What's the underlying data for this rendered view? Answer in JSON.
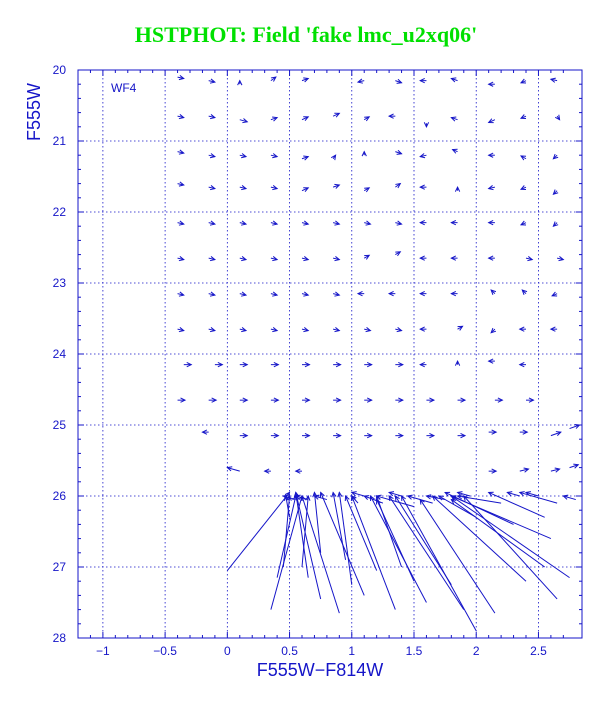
{
  "title": "HSTPHOT: Field 'fake lmc_u2xq06'",
  "chart_data": {
    "type": "vector_field",
    "panel_label": "WF4",
    "xlabel": "F555W−F814W",
    "ylabel": "F555W",
    "xlim": [
      -1.2,
      2.85
    ],
    "ylim": [
      28,
      20
    ],
    "y_inverted": true,
    "grid": true,
    "x_ticks": [
      -1,
      -0.5,
      0,
      0.5,
      1,
      1.5,
      2,
      2.5
    ],
    "x_tick_labels": [
      "−1",
      "−0.5",
      "0",
      "0.5",
      "1",
      "1.5",
      "2",
      "2.5"
    ],
    "y_ticks": [
      20,
      21,
      22,
      23,
      24,
      25,
      26,
      27,
      28
    ],
    "y_tick_labels": [
      "20",
      "21",
      "22",
      "23",
      "24",
      "25",
      "26",
      "27",
      "28"
    ],
    "vectors": [
      {
        "x": -0.4,
        "y": 20.1,
        "dx": 0.05,
        "dy": 0.02
      },
      {
        "x": -0.15,
        "y": 20.15,
        "dx": 0.05,
        "dy": 0.02
      },
      {
        "x": 0.1,
        "y": 20.2,
        "dx": 0.0,
        "dy": -0.05
      },
      {
        "x": 0.35,
        "y": 20.15,
        "dx": 0.04,
        "dy": -0.05
      },
      {
        "x": 0.6,
        "y": 20.15,
        "dx": 0.05,
        "dy": -0.03
      },
      {
        "x": 1.1,
        "y": 20.15,
        "dx": -0.05,
        "dy": 0.02
      },
      {
        "x": 1.35,
        "y": 20.15,
        "dx": 0.05,
        "dy": 0.03
      },
      {
        "x": 1.6,
        "y": 20.15,
        "dx": -0.05,
        "dy": 0.0
      },
      {
        "x": 1.85,
        "y": 20.15,
        "dx": -0.05,
        "dy": -0.03
      },
      {
        "x": 2.15,
        "y": 20.2,
        "dx": -0.05,
        "dy": 0.0
      },
      {
        "x": 2.4,
        "y": 20.15,
        "dx": -0.04,
        "dy": 0.03
      },
      {
        "x": 2.65,
        "y": 20.15,
        "dx": -0.05,
        "dy": -0.02
      },
      {
        "x": -0.4,
        "y": 20.65,
        "dx": 0.05,
        "dy": 0.02
      },
      {
        "x": -0.15,
        "y": 20.65,
        "dx": 0.05,
        "dy": 0.02
      },
      {
        "x": 0.1,
        "y": 20.7,
        "dx": 0.06,
        "dy": 0.03
      },
      {
        "x": 0.35,
        "y": 20.7,
        "dx": 0.05,
        "dy": -0.03
      },
      {
        "x": 0.6,
        "y": 20.7,
        "dx": 0.05,
        "dy": -0.04
      },
      {
        "x": 0.85,
        "y": 20.65,
        "dx": 0.05,
        "dy": -0.04
      },
      {
        "x": 1.1,
        "y": 20.7,
        "dx": 0.04,
        "dy": -0.04
      },
      {
        "x": 1.35,
        "y": 20.65,
        "dx": -0.05,
        "dy": 0.0
      },
      {
        "x": 1.6,
        "y": 20.75,
        "dx": 0.0,
        "dy": 0.05
      },
      {
        "x": 1.85,
        "y": 20.7,
        "dx": -0.05,
        "dy": -0.03
      },
      {
        "x": 2.15,
        "y": 20.7,
        "dx": -0.05,
        "dy": 0.04
      },
      {
        "x": 2.4,
        "y": 20.65,
        "dx": -0.04,
        "dy": 0.03
      },
      {
        "x": 2.65,
        "y": 20.65,
        "dx": 0.02,
        "dy": 0.05
      },
      {
        "x": -0.4,
        "y": 21.15,
        "dx": 0.05,
        "dy": 0.02
      },
      {
        "x": -0.15,
        "y": 21.2,
        "dx": 0.05,
        "dy": 0.02
      },
      {
        "x": 0.1,
        "y": 21.2,
        "dx": 0.05,
        "dy": 0.02
      },
      {
        "x": 0.35,
        "y": 21.2,
        "dx": 0.05,
        "dy": 0.02
      },
      {
        "x": 0.6,
        "y": 21.25,
        "dx": 0.05,
        "dy": -0.03
      },
      {
        "x": 0.85,
        "y": 21.25,
        "dx": 0.02,
        "dy": -0.05
      },
      {
        "x": 1.1,
        "y": 21.2,
        "dx": 0.0,
        "dy": -0.05
      },
      {
        "x": 1.35,
        "y": 21.15,
        "dx": 0.05,
        "dy": 0.03
      },
      {
        "x": 1.6,
        "y": 21.2,
        "dx": -0.05,
        "dy": 0.02
      },
      {
        "x": 1.85,
        "y": 21.15,
        "dx": -0.04,
        "dy": -0.03
      },
      {
        "x": 2.15,
        "y": 21.2,
        "dx": -0.05,
        "dy": 0.0
      },
      {
        "x": 2.4,
        "y": 21.25,
        "dx": -0.04,
        "dy": -0.04
      },
      {
        "x": 2.65,
        "y": 21.2,
        "dx": -0.03,
        "dy": 0.05
      },
      {
        "x": -0.4,
        "y": 21.6,
        "dx": 0.05,
        "dy": 0.02
      },
      {
        "x": -0.15,
        "y": 21.65,
        "dx": 0.05,
        "dy": 0.02
      },
      {
        "x": 0.1,
        "y": 21.65,
        "dx": 0.05,
        "dy": 0.02
      },
      {
        "x": 0.35,
        "y": 21.65,
        "dx": 0.05,
        "dy": 0.02
      },
      {
        "x": 0.6,
        "y": 21.7,
        "dx": 0.05,
        "dy": -0.04
      },
      {
        "x": 0.85,
        "y": 21.65,
        "dx": 0.05,
        "dy": -0.03
      },
      {
        "x": 1.1,
        "y": 21.7,
        "dx": 0.04,
        "dy": -0.04
      },
      {
        "x": 1.35,
        "y": 21.65,
        "dx": 0.04,
        "dy": -0.05
      },
      {
        "x": 1.6,
        "y": 21.65,
        "dx": -0.05,
        "dy": 0.0
      },
      {
        "x": 1.85,
        "y": 21.7,
        "dx": 0.0,
        "dy": -0.05
      },
      {
        "x": 2.15,
        "y": 21.65,
        "dx": -0.05,
        "dy": 0.02
      },
      {
        "x": 2.4,
        "y": 21.65,
        "dx": -0.04,
        "dy": 0.03
      },
      {
        "x": 2.65,
        "y": 21.7,
        "dx": -0.03,
        "dy": 0.05
      },
      {
        "x": -0.4,
        "y": 22.15,
        "dx": 0.05,
        "dy": 0.02
      },
      {
        "x": -0.15,
        "y": 22.15,
        "dx": 0.05,
        "dy": 0.02
      },
      {
        "x": 0.1,
        "y": 22.15,
        "dx": 0.05,
        "dy": 0.02
      },
      {
        "x": 0.35,
        "y": 22.15,
        "dx": 0.05,
        "dy": 0.02
      },
      {
        "x": 0.6,
        "y": 22.15,
        "dx": 0.05,
        "dy": 0.02
      },
      {
        "x": 0.85,
        "y": 22.15,
        "dx": 0.05,
        "dy": 0.02
      },
      {
        "x": 1.1,
        "y": 22.15,
        "dx": 0.05,
        "dy": 0.02
      },
      {
        "x": 1.35,
        "y": 22.15,
        "dx": 0.05,
        "dy": 0.02
      },
      {
        "x": 1.6,
        "y": 22.15,
        "dx": -0.05,
        "dy": 0.0
      },
      {
        "x": 1.85,
        "y": 22.15,
        "dx": -0.05,
        "dy": 0.0
      },
      {
        "x": 2.15,
        "y": 22.15,
        "dx": -0.05,
        "dy": 0.0
      },
      {
        "x": 2.4,
        "y": 22.15,
        "dx": -0.04,
        "dy": 0.03
      },
      {
        "x": 2.65,
        "y": 22.15,
        "dx": -0.03,
        "dy": 0.05
      },
      {
        "x": -0.4,
        "y": 22.65,
        "dx": 0.05,
        "dy": 0.02
      },
      {
        "x": -0.15,
        "y": 22.65,
        "dx": 0.05,
        "dy": 0.02
      },
      {
        "x": 0.1,
        "y": 22.65,
        "dx": 0.05,
        "dy": 0.02
      },
      {
        "x": 0.35,
        "y": 22.65,
        "dx": 0.05,
        "dy": 0.02
      },
      {
        "x": 0.6,
        "y": 22.65,
        "dx": 0.05,
        "dy": 0.02
      },
      {
        "x": 0.85,
        "y": 22.65,
        "dx": 0.05,
        "dy": 0.02
      },
      {
        "x": 1.1,
        "y": 22.65,
        "dx": 0.04,
        "dy": -0.04
      },
      {
        "x": 1.35,
        "y": 22.6,
        "dx": 0.04,
        "dy": -0.04
      },
      {
        "x": 1.6,
        "y": 22.65,
        "dx": -0.05,
        "dy": 0.0
      },
      {
        "x": 1.85,
        "y": 22.65,
        "dx": -0.05,
        "dy": 0.0
      },
      {
        "x": 2.15,
        "y": 22.65,
        "dx": -0.05,
        "dy": 0.0
      },
      {
        "x": 2.4,
        "y": 22.65,
        "dx": 0.05,
        "dy": 0.02
      },
      {
        "x": 2.65,
        "y": 22.65,
        "dx": 0.05,
        "dy": 0.02
      },
      {
        "x": -0.4,
        "y": 23.15,
        "dx": 0.05,
        "dy": 0.02
      },
      {
        "x": -0.15,
        "y": 23.15,
        "dx": 0.05,
        "dy": 0.02
      },
      {
        "x": 0.1,
        "y": 23.15,
        "dx": 0.05,
        "dy": 0.02
      },
      {
        "x": 0.35,
        "y": 23.15,
        "dx": 0.05,
        "dy": 0.02
      },
      {
        "x": 0.6,
        "y": 23.15,
        "dx": 0.05,
        "dy": 0.02
      },
      {
        "x": 0.85,
        "y": 23.15,
        "dx": 0.05,
        "dy": 0.02
      },
      {
        "x": 1.1,
        "y": 23.15,
        "dx": -0.05,
        "dy": 0.0
      },
      {
        "x": 1.35,
        "y": 23.15,
        "dx": -0.05,
        "dy": 0.0
      },
      {
        "x": 1.6,
        "y": 23.15,
        "dx": -0.05,
        "dy": 0.0
      },
      {
        "x": 1.85,
        "y": 23.15,
        "dx": -0.05,
        "dy": 0.0
      },
      {
        "x": 2.15,
        "y": 23.15,
        "dx": -0.03,
        "dy": -0.05
      },
      {
        "x": 2.4,
        "y": 23.15,
        "dx": -0.03,
        "dy": -0.05
      },
      {
        "x": 2.65,
        "y": 23.15,
        "dx": -0.04,
        "dy": 0.03
      },
      {
        "x": -0.4,
        "y": 23.65,
        "dx": 0.05,
        "dy": 0.02
      },
      {
        "x": -0.15,
        "y": 23.65,
        "dx": 0.05,
        "dy": 0.02
      },
      {
        "x": 0.1,
        "y": 23.65,
        "dx": 0.05,
        "dy": 0.02
      },
      {
        "x": 0.35,
        "y": 23.65,
        "dx": 0.05,
        "dy": 0.02
      },
      {
        "x": 0.6,
        "y": 23.65,
        "dx": 0.05,
        "dy": 0.02
      },
      {
        "x": 0.85,
        "y": 23.65,
        "dx": 0.05,
        "dy": 0.02
      },
      {
        "x": 1.1,
        "y": 23.65,
        "dx": 0.05,
        "dy": 0.02
      },
      {
        "x": 1.35,
        "y": 23.65,
        "dx": 0.05,
        "dy": 0.02
      },
      {
        "x": 1.6,
        "y": 23.65,
        "dx": -0.05,
        "dy": 0.0
      },
      {
        "x": 1.85,
        "y": 23.65,
        "dx": 0.04,
        "dy": -0.04
      },
      {
        "x": 2.15,
        "y": 23.65,
        "dx": -0.03,
        "dy": 0.05
      },
      {
        "x": 2.4,
        "y": 23.65,
        "dx": -0.05,
        "dy": 0.0
      },
      {
        "x": 2.65,
        "y": 23.65,
        "dx": -0.05,
        "dy": 0.0
      },
      {
        "x": -0.35,
        "y": 24.15,
        "dx": 0.06,
        "dy": 0.0
      },
      {
        "x": -0.1,
        "y": 24.15,
        "dx": 0.06,
        "dy": 0.0
      },
      {
        "x": 0.1,
        "y": 24.15,
        "dx": 0.06,
        "dy": 0.0
      },
      {
        "x": 0.35,
        "y": 24.15,
        "dx": 0.06,
        "dy": 0.0
      },
      {
        "x": 0.6,
        "y": 24.15,
        "dx": 0.06,
        "dy": 0.0
      },
      {
        "x": 0.85,
        "y": 24.15,
        "dx": 0.06,
        "dy": 0.0
      },
      {
        "x": 1.1,
        "y": 24.15,
        "dx": 0.06,
        "dy": 0.0
      },
      {
        "x": 1.35,
        "y": 24.15,
        "dx": 0.06,
        "dy": 0.0
      },
      {
        "x": 1.6,
        "y": 24.15,
        "dx": -0.05,
        "dy": 0.0
      },
      {
        "x": 1.85,
        "y": 24.15,
        "dx": 0.0,
        "dy": -0.05
      },
      {
        "x": 2.15,
        "y": 24.1,
        "dx": -0.05,
        "dy": 0.0
      },
      {
        "x": 2.4,
        "y": 24.15,
        "dx": -0.05,
        "dy": 0.0
      },
      {
        "x": -0.4,
        "y": 24.65,
        "dx": 0.06,
        "dy": 0.0
      },
      {
        "x": -0.15,
        "y": 24.65,
        "dx": 0.06,
        "dy": 0.0
      },
      {
        "x": 0.1,
        "y": 24.65,
        "dx": 0.06,
        "dy": 0.0
      },
      {
        "x": 0.35,
        "y": 24.65,
        "dx": 0.06,
        "dy": 0.0
      },
      {
        "x": 0.6,
        "y": 24.65,
        "dx": 0.06,
        "dy": 0.0
      },
      {
        "x": 0.85,
        "y": 24.65,
        "dx": 0.06,
        "dy": 0.0
      },
      {
        "x": 1.1,
        "y": 24.65,
        "dx": 0.06,
        "dy": 0.0
      },
      {
        "x": 1.35,
        "y": 24.65,
        "dx": 0.06,
        "dy": 0.0
      },
      {
        "x": 1.6,
        "y": 24.65,
        "dx": 0.06,
        "dy": 0.0
      },
      {
        "x": 1.85,
        "y": 24.65,
        "dx": 0.06,
        "dy": 0.0
      },
      {
        "x": 2.15,
        "y": 24.65,
        "dx": 0.06,
        "dy": 0.0
      },
      {
        "x": 2.4,
        "y": 24.65,
        "dx": 0.06,
        "dy": 0.0
      },
      {
        "x": -0.15,
        "y": 25.1,
        "dx": -0.05,
        "dy": 0.0
      },
      {
        "x": 0.1,
        "y": 25.15,
        "dx": 0.06,
        "dy": 0.0
      },
      {
        "x": 0.35,
        "y": 25.15,
        "dx": 0.06,
        "dy": 0.0
      },
      {
        "x": 0.6,
        "y": 25.15,
        "dx": 0.06,
        "dy": 0.0
      },
      {
        "x": 0.85,
        "y": 25.15,
        "dx": 0.06,
        "dy": 0.0
      },
      {
        "x": 1.1,
        "y": 25.15,
        "dx": 0.06,
        "dy": 0.0
      },
      {
        "x": 1.35,
        "y": 25.15,
        "dx": 0.06,
        "dy": 0.0
      },
      {
        "x": 1.6,
        "y": 25.15,
        "dx": 0.06,
        "dy": 0.0
      },
      {
        "x": 1.85,
        "y": 25.15,
        "dx": 0.06,
        "dy": 0.0
      },
      {
        "x": 2.1,
        "y": 25.1,
        "dx": 0.06,
        "dy": 0.0
      },
      {
        "x": 2.35,
        "y": 25.1,
        "dx": 0.06,
        "dy": 0.0
      },
      {
        "x": 2.6,
        "y": 25.15,
        "dx": 0.08,
        "dy": -0.05
      },
      {
        "x": 2.75,
        "y": 25.05,
        "dx": 0.08,
        "dy": -0.05
      },
      {
        "x": 0.1,
        "y": 25.65,
        "dx": -0.1,
        "dy": -0.05
      },
      {
        "x": 0.35,
        "y": 25.65,
        "dx": -0.05,
        "dy": 0.0
      },
      {
        "x": 0.6,
        "y": 25.65,
        "dx": -0.05,
        "dy": 0.0
      },
      {
        "x": 2.1,
        "y": 25.65,
        "dx": 0.06,
        "dy": 0.0
      },
      {
        "x": 2.35,
        "y": 25.65,
        "dx": 0.07,
        "dy": -0.03
      },
      {
        "x": 2.6,
        "y": 25.65,
        "dx": 0.07,
        "dy": -0.03
      },
      {
        "x": 2.75,
        "y": 25.6,
        "dx": 0.07,
        "dy": -0.04
      },
      {
        "x": 0.0,
        "y": 27.05,
        "dx": 0.5,
        "dy": -1.1
      },
      {
        "x": 0.35,
        "y": 27.6,
        "dx": 0.25,
        "dy": -1.6
      },
      {
        "x": 0.4,
        "y": 27.15,
        "dx": 0.15,
        "dy": -1.15
      },
      {
        "x": 0.45,
        "y": 27.0,
        "dx": 0.05,
        "dy": -1.0
      },
      {
        "x": 0.5,
        "y": 26.3,
        "dx": -0.03,
        "dy": -0.3
      },
      {
        "x": 0.9,
        "y": 27.65,
        "dx": -0.3,
        "dy": -1.65
      },
      {
        "x": 0.75,
        "y": 27.45,
        "dx": -0.2,
        "dy": -1.5
      },
      {
        "x": 0.65,
        "y": 27.15,
        "dx": -0.1,
        "dy": -1.2
      },
      {
        "x": 0.6,
        "y": 27.0,
        "dx": 0.05,
        "dy": -1.0
      },
      {
        "x": 0.75,
        "y": 26.8,
        "dx": -0.05,
        "dy": -0.85
      },
      {
        "x": 1.1,
        "y": 27.4,
        "dx": -0.35,
        "dy": -1.45
      },
      {
        "x": 0.95,
        "y": 26.9,
        "dx": -0.1,
        "dy": -0.95
      },
      {
        "x": 1.0,
        "y": 27.25,
        "dx": -0.1,
        "dy": -1.3
      },
      {
        "x": 1.2,
        "y": 27.05,
        "dx": -0.25,
        "dy": -1.05
      },
      {
        "x": 1.35,
        "y": 27.6,
        "dx": -0.35,
        "dy": -1.6
      },
      {
        "x": 1.6,
        "y": 27.5,
        "dx": -0.45,
        "dy": -1.5
      },
      {
        "x": 1.4,
        "y": 27.0,
        "dx": -0.2,
        "dy": -1.0
      },
      {
        "x": 1.5,
        "y": 27.2,
        "dx": -0.3,
        "dy": -1.15
      },
      {
        "x": 1.9,
        "y": 27.6,
        "dx": -0.6,
        "dy": -1.6
      },
      {
        "x": 2.0,
        "y": 27.9,
        "dx": -0.6,
        "dy": -1.9
      },
      {
        "x": 1.8,
        "y": 27.25,
        "dx": -0.45,
        "dy": -1.25
      },
      {
        "x": 2.15,
        "y": 27.65,
        "dx": -0.6,
        "dy": -1.6
      },
      {
        "x": 2.4,
        "y": 27.2,
        "dx": -0.75,
        "dy": -1.2
      },
      {
        "x": 2.55,
        "y": 27.0,
        "dx": -0.75,
        "dy": -0.95
      },
      {
        "x": 2.75,
        "y": 27.15,
        "dx": -0.95,
        "dy": -1.15
      },
      {
        "x": 2.65,
        "y": 27.45,
        "dx": -0.75,
        "dy": -1.45
      },
      {
        "x": 2.6,
        "y": 26.6,
        "dx": -0.8,
        "dy": -0.6
      },
      {
        "x": 2.3,
        "y": 26.4,
        "dx": -0.55,
        "dy": -0.45
      },
      {
        "x": 2.0,
        "y": 26.3,
        "dx": -0.3,
        "dy": -0.3
      },
      {
        "x": 2.55,
        "y": 26.3,
        "dx": -0.45,
        "dy": -0.35
      },
      {
        "x": 2.65,
        "y": 26.1,
        "dx": -0.3,
        "dy": -0.15
      },
      {
        "x": 2.2,
        "y": 26.1,
        "dx": -0.35,
        "dy": -0.1
      },
      {
        "x": 1.5,
        "y": 26.15,
        "dx": -0.3,
        "dy": -0.15
      },
      {
        "x": 1.25,
        "y": 26.1,
        "dx": -0.15,
        "dy": -0.1
      },
      {
        "x": 1.05,
        "y": 26.1,
        "dx": -0.05,
        "dy": -0.1
      },
      {
        "x": 1.65,
        "y": 26.1,
        "dx": -0.2,
        "dy": -0.1
      },
      {
        "x": 1.75,
        "y": 26.05,
        "dx": -0.15,
        "dy": -0.05
      },
      {
        "x": 0.55,
        "y": 26.05,
        "dx": -0.1,
        "dy": -0.05
      },
      {
        "x": 0.65,
        "y": 26.05,
        "dx": -0.1,
        "dy": -0.05
      },
      {
        "x": 0.8,
        "y": 26.05,
        "dx": -0.1,
        "dy": -0.05
      },
      {
        "x": 1.95,
        "y": 26.0,
        "dx": -0.1,
        "dy": -0.05
      },
      {
        "x": 2.35,
        "y": 26.0,
        "dx": -0.1,
        "dy": -0.05
      },
      {
        "x": 2.5,
        "y": 26.0,
        "dx": -0.1,
        "dy": -0.05
      },
      {
        "x": 2.8,
        "y": 26.05,
        "dx": -0.1,
        "dy": -0.05
      },
      {
        "x": 1.4,
        "y": 26.0,
        "dx": -0.1,
        "dy": -0.05
      },
      {
        "x": 1.1,
        "y": 26.0,
        "dx": -0.1,
        "dy": -0.05
      }
    ]
  }
}
